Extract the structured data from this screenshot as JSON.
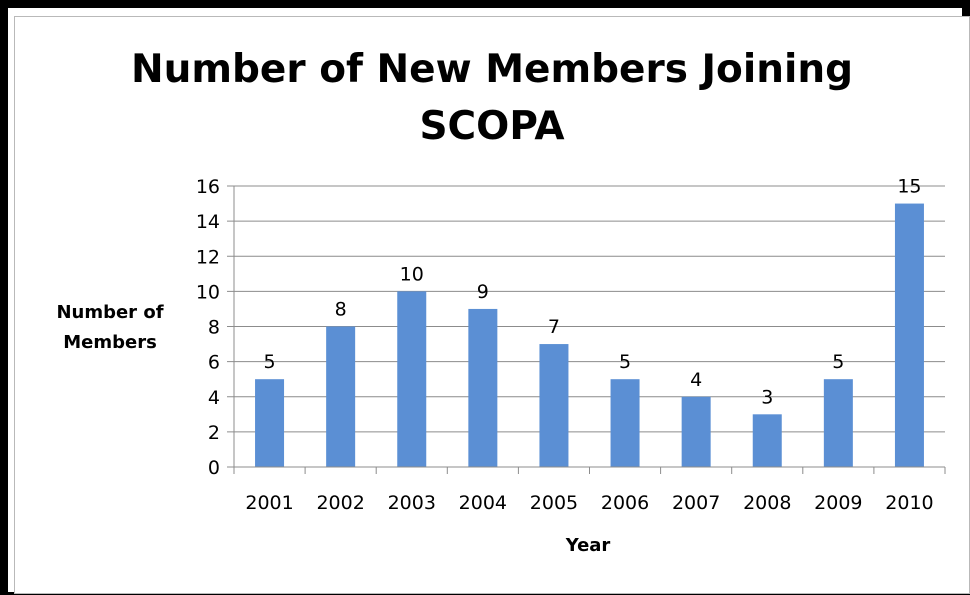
{
  "chart_data": {
    "type": "bar",
    "title_lines": [
      "Number of New Members Joining",
      "SCOPA"
    ],
    "xlabel": "Year",
    "ylabel_lines": [
      "Number of",
      "Members"
    ],
    "categories": [
      "2001",
      "2002",
      "2003",
      "2004",
      "2005",
      "2006",
      "2007",
      "2008",
      "2009",
      "2010"
    ],
    "values": [
      5,
      8,
      10,
      9,
      7,
      5,
      4,
      3,
      5,
      15
    ],
    "ylim": [
      0,
      16
    ],
    "yticks": [
      "0",
      "2",
      "4",
      "6",
      "8",
      "10",
      "12",
      "14",
      "16"
    ],
    "grid": true,
    "bar_color": "#5b8fd4",
    "data_labels": true
  }
}
